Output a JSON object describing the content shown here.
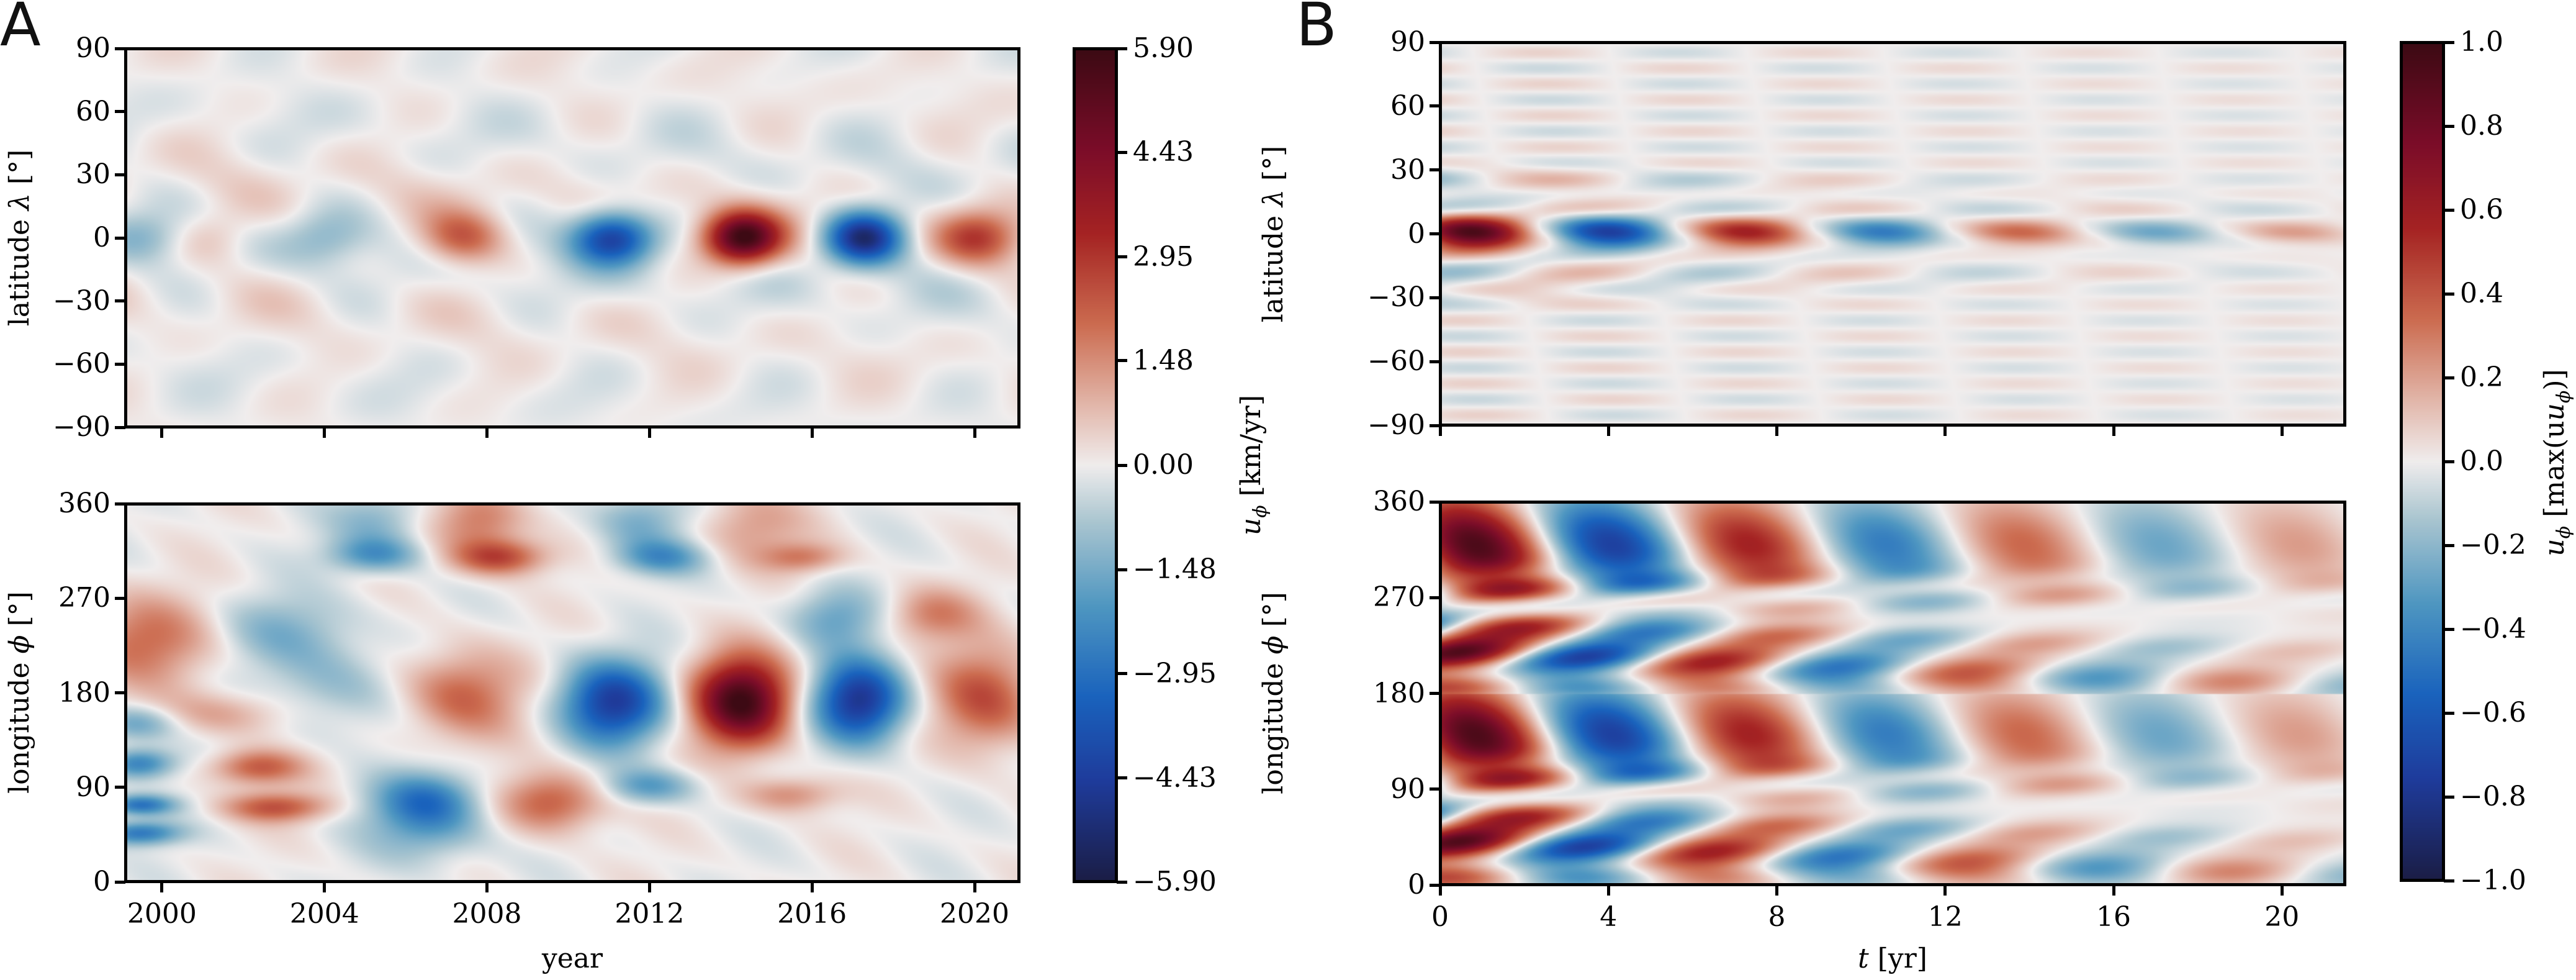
{
  "figure": {
    "panels": [
      {
        "id": "A",
        "letter": "A"
      },
      {
        "id": "B",
        "letter": "B"
      }
    ]
  },
  "colors": {
    "colormap": "RdBu_r",
    "stops": [
      {
        "v": 0.0,
        "hex": "#1b1e47"
      },
      {
        "v": 0.12,
        "hex": "#1f3c9c"
      },
      {
        "v": 0.22,
        "hex": "#1a63bd"
      },
      {
        "v": 0.33,
        "hex": "#4f97c1"
      },
      {
        "v": 0.43,
        "hex": "#a9c5d0"
      },
      {
        "v": 0.5,
        "hex": "#f0eded"
      },
      {
        "v": 0.57,
        "hex": "#e3b9ad"
      },
      {
        "v": 0.67,
        "hex": "#cc6c50"
      },
      {
        "v": 0.78,
        "hex": "#a52323"
      },
      {
        "v": 0.88,
        "hex": "#7c0d29"
      },
      {
        "v": 1.0,
        "hex": "#3d0a14"
      }
    ]
  },
  "chart_data": [
    {
      "id": "A-top",
      "type": "heatmap",
      "panel": "A",
      "title": "",
      "xlabel": "",
      "ylabel": "latitude λ [°]",
      "ylabel_plain": "latitude ",
      "ylabel_sym": "λ",
      "ylabel_unit": " [°]",
      "xlim": [
        1999.1,
        2021.1
      ],
      "ylim": [
        -90,
        90
      ],
      "xticks": [
        2000,
        2004,
        2008,
        2012,
        2016,
        2020
      ],
      "xtick_labels_visible": false,
      "yticks": [
        90,
        60,
        30,
        0,
        -30,
        -60,
        -90
      ],
      "ytick_labels": [
        "90",
        "60",
        "30",
        "0",
        "−30",
        "−60",
        "−90"
      ],
      "clim": [
        -5.9,
        5.9
      ],
      "grid": false,
      "features": {
        "equatorial_blobs": [
          {
            "x": 1999.5,
            "y": 0,
            "value": -0.9,
            "sx": 0.8,
            "sy": 8
          },
          {
            "x": 2001.2,
            "y": 0,
            "value": 0.6,
            "sx": 0.8,
            "sy": 9
          },
          {
            "x": 2004.0,
            "y": 0,
            "value": -0.9,
            "sx": 0.9,
            "sy": 9
          },
          {
            "x": 2007.4,
            "y": 0,
            "value": 2.3,
            "sx": 0.9,
            "sy": 9
          },
          {
            "x": 2011.1,
            "y": 0,
            "value": -4.6,
            "sx": 0.9,
            "sy": 9
          },
          {
            "x": 2014.3,
            "y": 0,
            "value": 5.9,
            "sx": 0.85,
            "sy": 9
          },
          {
            "x": 2017.3,
            "y": 0,
            "value": -5.2,
            "sx": 0.85,
            "sy": 9
          },
          {
            "x": 2020.1,
            "y": 0,
            "value": 2.5,
            "sx": 0.9,
            "sy": 9
          }
        ],
        "background_amplitude": 0.55
      }
    },
    {
      "id": "A-bottom",
      "type": "heatmap",
      "panel": "A",
      "title": "",
      "xlabel": "year",
      "ylabel": "longitude ϕ [°]",
      "ylabel_plain": "longitude ",
      "ylabel_sym": "ϕ",
      "ylabel_unit": " [°]",
      "xlim": [
        1999.1,
        2021.1
      ],
      "ylim": [
        0,
        360
      ],
      "xticks": [
        2000,
        2004,
        2008,
        2012,
        2016,
        2020
      ],
      "xtick_labels": [
        "2000",
        "2004",
        "2008",
        "2012",
        "2016",
        "2020"
      ],
      "yticks": [
        360,
        270,
        180,
        90,
        0
      ],
      "ytick_labels": [
        "360",
        "270",
        "180",
        "90",
        "0"
      ],
      "clim": [
        -5.9,
        5.9
      ],
      "grid": false,
      "features": {
        "blobs": [
          {
            "x": 2011.1,
            "y": 170,
            "value": -4.4,
            "sx": 0.9,
            "sy": 28
          },
          {
            "x": 2014.3,
            "y": 172,
            "value": 5.8,
            "sx": 0.85,
            "sy": 30
          },
          {
            "x": 2017.2,
            "y": 172,
            "value": -4.8,
            "sx": 0.8,
            "sy": 28
          },
          {
            "x": 2020.3,
            "y": 175,
            "value": 2.6,
            "sx": 0.9,
            "sy": 35
          },
          {
            "x": 2007.4,
            "y": 178,
            "value": 2.2,
            "sx": 1.0,
            "sy": 30
          },
          {
            "x": 2004.2,
            "y": 185,
            "value": -1.1,
            "sx": 1.1,
            "sy": 30
          },
          {
            "x": 2002.3,
            "y": 108,
            "value": 2.3,
            "sx": 0.8,
            "sy": 12
          },
          {
            "x": 2002.8,
            "y": 70,
            "value": 2.4,
            "sx": 0.9,
            "sy": 10
          },
          {
            "x": 1999.4,
            "y": 112,
            "value": -2.6,
            "sx": 0.6,
            "sy": 10
          },
          {
            "x": 1999.4,
            "y": 72,
            "value": -2.8,
            "sx": 0.6,
            "sy": 7
          },
          {
            "x": 1999.4,
            "y": 45,
            "value": -2.8,
            "sx": 0.7,
            "sy": 8
          },
          {
            "x": 2006.5,
            "y": 55,
            "value": -1.9,
            "sx": 1.0,
            "sy": 25
          },
          {
            "x": 2006.5,
            "y": 80,
            "value": -1.8,
            "sx": 0.9,
            "sy": 18
          },
          {
            "x": 2009.6,
            "y": 75,
            "value": 2.4,
            "sx": 0.9,
            "sy": 20
          },
          {
            "x": 2012.0,
            "y": 90,
            "value": -1.9,
            "sx": 0.8,
            "sy": 12
          },
          {
            "x": 2015.5,
            "y": 82,
            "value": 1.6,
            "sx": 0.8,
            "sy": 12
          },
          {
            "x": 2008.3,
            "y": 310,
            "value": 2.6,
            "sx": 0.8,
            "sy": 12
          },
          {
            "x": 2007.8,
            "y": 345,
            "value": 1.9,
            "sx": 0.8,
            "sy": 22
          },
          {
            "x": 2005.2,
            "y": 312,
            "value": -2.0,
            "sx": 0.8,
            "sy": 12
          },
          {
            "x": 2005.3,
            "y": 345,
            "value": -1.3,
            "sx": 0.8,
            "sy": 20
          },
          {
            "x": 2012.3,
            "y": 310,
            "value": -2.0,
            "sx": 0.8,
            "sy": 12
          },
          {
            "x": 2011.8,
            "y": 345,
            "value": -1.5,
            "sx": 0.8,
            "sy": 20
          },
          {
            "x": 2014.5,
            "y": 340,
            "value": 1.3,
            "sx": 0.9,
            "sy": 25
          },
          {
            "x": 2015.8,
            "y": 310,
            "value": 1.6,
            "sx": 0.7,
            "sy": 10
          },
          {
            "x": 2016.6,
            "y": 252,
            "value": -1.6,
            "sx": 0.8,
            "sy": 20
          },
          {
            "x": 2019.0,
            "y": 255,
            "value": 1.6,
            "sx": 0.8,
            "sy": 18
          },
          {
            "x": 1999.5,
            "y": 230,
            "value": 2.0,
            "sx": 1.2,
            "sy": 30
          },
          {
            "x": 2003.0,
            "y": 240,
            "value": -1.2,
            "sx": 1.2,
            "sy": 25
          },
          {
            "x": 1999.3,
            "y": 150,
            "value": -1.8,
            "sx": 0.7,
            "sy": 12
          },
          {
            "x": 2001.5,
            "y": 160,
            "value": 1.2,
            "sx": 1.2,
            "sy": 15
          }
        ]
      }
    },
    {
      "id": "A-colorbar",
      "type": "colorbar",
      "panel": "A",
      "label": "u_φ [km/yr]",
      "label_sym": "u",
      "label_sub": "ϕ",
      "label_unit": " [km/yr]",
      "range": [
        -5.9,
        5.9
      ],
      "ticks": [
        5.9,
        4.43,
        2.95,
        1.48,
        0.0,
        -1.48,
        -2.95,
        -4.43,
        -5.9
      ],
      "tick_labels": [
        "5.90",
        "4.43",
        "2.95",
        "1.48",
        "0.00",
        "−1.48",
        "−2.95",
        "−4.43",
        "−5.90"
      ]
    },
    {
      "id": "B-top",
      "type": "heatmap",
      "panel": "B",
      "title": "",
      "xlabel": "",
      "ylabel": "latitude λ [°]",
      "ylabel_plain": "latitude ",
      "ylabel_sym": "λ",
      "ylabel_unit": " [°]",
      "xlim": [
        0,
        21.5
      ],
      "ylim": [
        -90,
        90
      ],
      "xticks": [
        0,
        4,
        8,
        12,
        16,
        20
      ],
      "xtick_labels_visible": false,
      "yticks": [
        90,
        60,
        30,
        0,
        -30,
        -60,
        -90
      ],
      "ytick_labels": [
        "90",
        "60",
        "30",
        "0",
        "−30",
        "−60",
        "−90"
      ],
      "clim": [
        -1.0,
        1.0
      ],
      "grid": false,
      "features": {
        "equatorial_blobs": [
          {
            "x": 0.8,
            "y": 0,
            "value": 1.0
          },
          {
            "x": 4.0,
            "y": 0,
            "value": -0.78
          },
          {
            "x": 7.5,
            "y": 0,
            "value": 0.6
          },
          {
            "x": 10.7,
            "y": 0,
            "value": -0.45
          },
          {
            "x": 13.9,
            "y": 0,
            "value": 0.36
          },
          {
            "x": 17.3,
            "y": 0,
            "value": -0.27
          },
          {
            "x": 20.9,
            "y": 0,
            "value": 0.2
          }
        ],
        "period_yr": 3.27,
        "background_amplitude": 0.08
      }
    },
    {
      "id": "B-bottom",
      "type": "heatmap",
      "panel": "B",
      "title": "",
      "xlabel": "t [yr]",
      "xlabel_sym": "t",
      "xlabel_unit": " [yr]",
      "ylabel": "longitude ϕ [°]",
      "ylabel_plain": "longitude ",
      "ylabel_sym": "ϕ",
      "ylabel_unit": " [°]",
      "xlim": [
        0,
        21.5
      ],
      "ylim": [
        0,
        360
      ],
      "xticks": [
        0,
        4,
        8,
        12,
        16,
        20
      ],
      "xtick_labels": [
        "0",
        "4",
        "8",
        "12",
        "16",
        "20"
      ],
      "yticks": [
        360,
        270,
        180,
        90,
        0
      ],
      "ytick_labels": [
        "360",
        "270",
        "180",
        "90",
        "0"
      ],
      "clim": [
        -1.0,
        1.0
      ],
      "grid": false,
      "features": {
        "longitudinal_period_deg": 180,
        "period_yr": 3.27,
        "drift_deg_per_yr": -9,
        "decay_per_yr": 0.075
      }
    },
    {
      "id": "B-colorbar",
      "type": "colorbar",
      "panel": "B",
      "label": "u_φ [max(u_φ)]",
      "label_sym": "u",
      "label_sub": "ϕ",
      "label_unit": " [max(u",
      "label_unit_end": ")]",
      "range": [
        -1.0,
        1.0
      ],
      "ticks": [
        1.0,
        0.8,
        0.6,
        0.4,
        0.2,
        0.0,
        -0.2,
        -0.4,
        -0.6,
        -0.8,
        -1.0
      ],
      "tick_labels": [
        "1.0",
        "0.8",
        "0.6",
        "0.4",
        "0.2",
        "0.0",
        "−0.2",
        "−0.4",
        "−0.6",
        "−0.8",
        "−1.0"
      ]
    }
  ]
}
